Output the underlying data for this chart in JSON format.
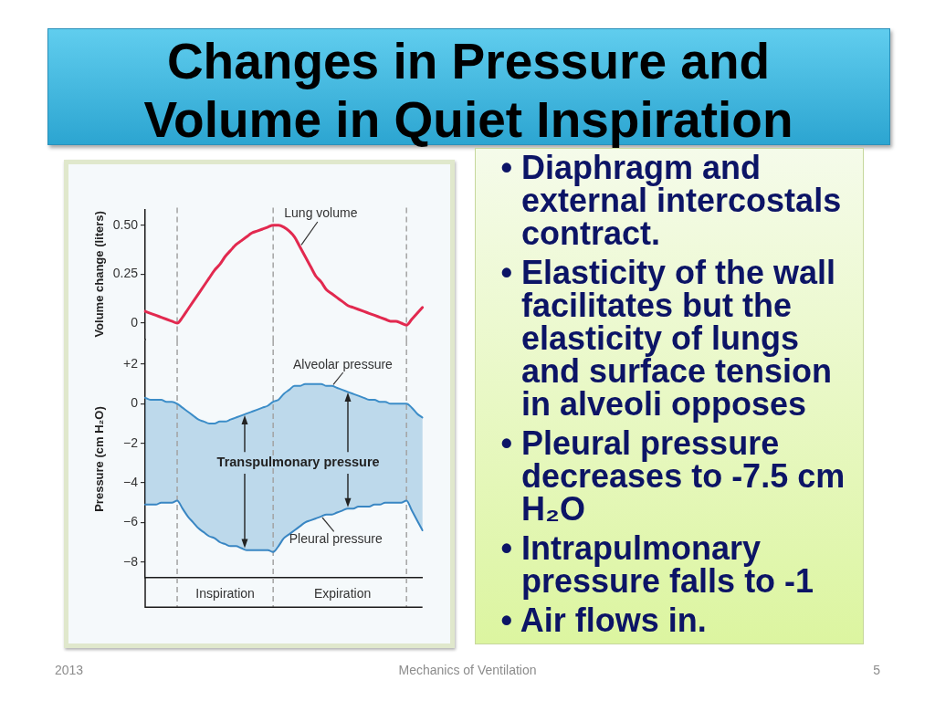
{
  "chart_data": [
    {
      "type": "other",
      "title": "Changes in Pressure and Volume in Quiet Inspiration"
    },
    {
      "type": "line",
      "ylabel": "Volume change (liters)",
      "categories": [
        null,
        null,
        null,
        null,
        null,
        null,
        null,
        null,
        null,
        null,
        null,
        null,
        null,
        null,
        null,
        null,
        null,
        null,
        null,
        null,
        null,
        null,
        null,
        null,
        null,
        null,
        null,
        null,
        null,
        null,
        null,
        null,
        null,
        null,
        null,
        null,
        null,
        null,
        null,
        null,
        null,
        null,
        null,
        null,
        null,
        null,
        null,
        null,
        null,
        null,
        null,
        null,
        null
      ],
      "series": [
        {
          "name": "Lung volume",
          "color": "#e2294f",
          "values": [
            0.06,
            0.05,
            0.04,
            0.03,
            0.02,
            0.01,
            0,
            0.03,
            0.07,
            0.11,
            0.15,
            0.19,
            0.23,
            0.27,
            0.3,
            0.34,
            0.37,
            0.4,
            0.42,
            0.44,
            0.46,
            0.47,
            0.48,
            0.49,
            0.5,
            0.5,
            0.49,
            0.47,
            0.44,
            0.39,
            0.34,
            0.29,
            0.24,
            0.21,
            0.17,
            0.15,
            0.13,
            0.11,
            0.09,
            0.08,
            0.07,
            0.06,
            0.05,
            0.04,
            0.03,
            0.02,
            0.01,
            0.01,
            0,
            -0.01,
            0.02,
            0.05,
            0.08
          ]
        }
      ],
      "ylim": [
        -0.08,
        0.58
      ],
      "yticks": [
        {
          "value": 0,
          "label": "0"
        },
        {
          "value": 0.25,
          "label": "0.25"
        },
        {
          "value": 0.5,
          "label": "0.50"
        }
      ],
      "grid": "x"
    },
    {
      "type": "line",
      "ylabel": "Pressure (cm H₂O)",
      "categories": [
        null,
        null,
        null,
        null,
        null,
        null,
        null,
        null,
        null,
        null,
        null,
        null,
        null,
        null,
        null,
        "Inspiration",
        null,
        null,
        null,
        null,
        null,
        null,
        null,
        null,
        null,
        null,
        null,
        null,
        null,
        null,
        null,
        null,
        null,
        null,
        null,
        null,
        null,
        "Expiration",
        null,
        null,
        null,
        null,
        null,
        null,
        null,
        null,
        null,
        null,
        null,
        null,
        null,
        null,
        null
      ],
      "series": [
        {
          "name": "Alveolar pressure",
          "color": "#3c8dc8",
          "values": [
            0.3,
            0.2,
            0.2,
            0.2,
            0.1,
            0.1,
            0,
            -0.2,
            -0.4,
            -0.6,
            -0.8,
            -0.9,
            -1,
            -1,
            -0.9,
            -0.9,
            -0.8,
            -0.7,
            -0.6,
            -0.5,
            -0.4,
            -0.3,
            -0.2,
            -0.1,
            0.1,
            0.2,
            0.5,
            0.7,
            0.9,
            0.9,
            1,
            1,
            1,
            1,
            0.9,
            0.9,
            0.8,
            0.7,
            0.6,
            0.5,
            0.4,
            0.3,
            0.2,
            0.2,
            0.1,
            0.1,
            0,
            0,
            0,
            0,
            -0.2,
            -0.5,
            -0.7
          ],
          "lower": [
            -5.1,
            -5.1,
            -5.1,
            -5,
            -5,
            -5,
            -4.9,
            -5.3,
            -5.7,
            -6,
            -6.3,
            -6.5,
            -6.7,
            -6.8,
            -7,
            -7.1,
            -7.2,
            -7.2,
            -7.3,
            -7.4,
            -7.4,
            -7.4,
            -7.4,
            -7.4,
            -7.5,
            -7.2,
            -6.8,
            -6.6,
            -6.4,
            -6.2,
            -6,
            -5.9,
            -5.8,
            -5.7,
            -5.6,
            -5.6,
            -5.5,
            -5.4,
            -5.3,
            -5.3,
            -5.2,
            -5.2,
            -5.2,
            -5.1,
            -5.1,
            -5,
            -5,
            -5,
            -5,
            -4.9,
            -5.4,
            -5.9,
            -6.4
          ],
          "upper": [
            0.3,
            0.2,
            0.2,
            0.2,
            0.1,
            0.1,
            0,
            -0.2,
            -0.4,
            -0.6,
            -0.8,
            -0.9,
            -1,
            -1,
            -0.9,
            -0.9,
            -0.8,
            -0.7,
            -0.6,
            -0.5,
            -0.4,
            -0.3,
            -0.2,
            -0.1,
            0.1,
            0.2,
            0.5,
            0.7,
            0.9,
            0.9,
            1,
            1,
            1,
            1,
            0.9,
            0.9,
            0.8,
            0.7,
            0.6,
            0.5,
            0.4,
            0.3,
            0.2,
            0.2,
            0.1,
            0.1,
            0,
            0,
            0,
            0,
            -0.2,
            -0.5,
            -0.7
          ]
        },
        {
          "name": "Pleural pressure",
          "color": "#3986c3",
          "values": [
            -5.1,
            -5.1,
            -5.1,
            -5,
            -5,
            -5,
            -4.9,
            -5.3,
            -5.7,
            -6,
            -6.3,
            -6.5,
            -6.7,
            -6.8,
            -7,
            -7.1,
            -7.2,
            -7.2,
            -7.3,
            -7.4,
            -7.4,
            -7.4,
            -7.4,
            -7.4,
            -7.5,
            -7.2,
            -6.8,
            -6.6,
            -6.4,
            -6.2,
            -6,
            -5.9,
            -5.8,
            -5.7,
            -5.6,
            -5.6,
            -5.5,
            -5.4,
            -5.3,
            -5.3,
            -5.2,
            -5.2,
            -5.2,
            -5.1,
            -5.1,
            -5,
            -5,
            -5,
            -5,
            -4.9,
            -5.4,
            -5.9,
            -6.4
          ]
        }
      ],
      "ylim": [
        -8.8,
        3.2
      ],
      "yticks": [
        {
          "value": -8,
          "label": "−8"
        },
        {
          "value": -6,
          "label": "−6"
        },
        {
          "value": -4,
          "label": "−4"
        },
        {
          "value": -2,
          "label": "−2"
        },
        0,
        {
          "value": 2,
          "label": "+2"
        }
      ],
      "grid": "x",
      "annotations": [
        "Transpulmonary pressure"
      ]
    },
    {
      "type": "other",
      "annotations": [
        "• Diaphragm and external intercostals contract.",
        "• Elasticity of the wall facilitates but the elasticity of lungs and surface tension in alveoli opposes",
        "• Pleural pressure decreases to -7.5 cm H₂O",
        "• Intrapulmonary pressure falls to -1",
        "• Air flows in."
      ]
    },
    {
      "type": "other",
      "annotations": [
        "2013",
        "Mechanics of Ventilation",
        "5"
      ]
    }
  ]
}
